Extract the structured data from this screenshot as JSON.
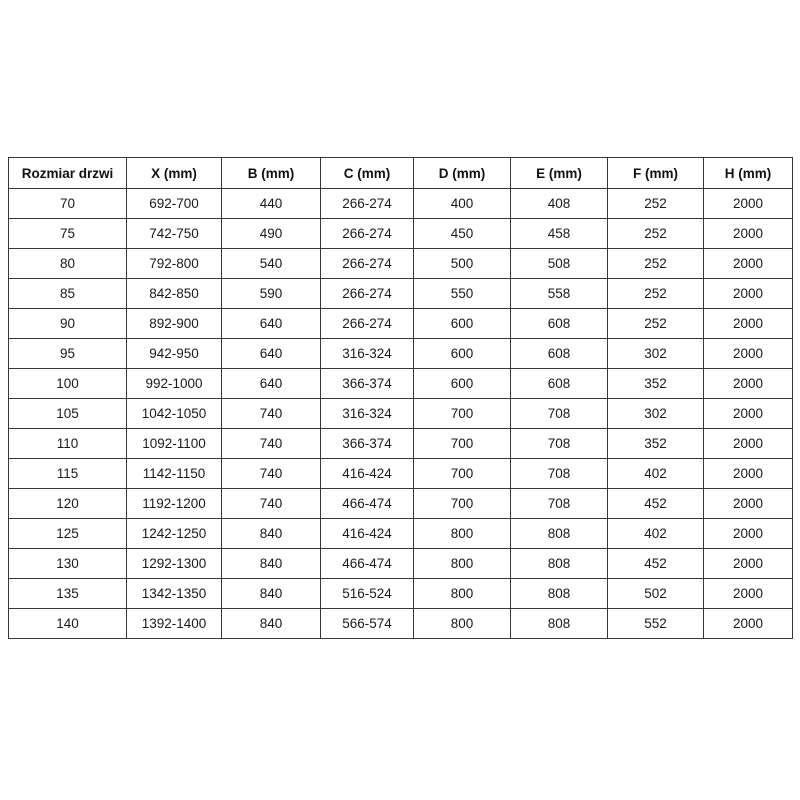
{
  "table": {
    "headers": [
      "Rozmiar drzwi",
      "X (mm)",
      "B (mm)",
      "C (mm)",
      "D (mm)",
      "E (mm)",
      "F (mm)",
      "H (mm)"
    ],
    "rows": [
      [
        "70",
        "692-700",
        "440",
        "266-274",
        "400",
        "408",
        "252",
        "2000"
      ],
      [
        "75",
        "742-750",
        "490",
        "266-274",
        "450",
        "458",
        "252",
        "2000"
      ],
      [
        "80",
        "792-800",
        "540",
        "266-274",
        "500",
        "508",
        "252",
        "2000"
      ],
      [
        "85",
        "842-850",
        "590",
        "266-274",
        "550",
        "558",
        "252",
        "2000"
      ],
      [
        "90",
        "892-900",
        "640",
        "266-274",
        "600",
        "608",
        "252",
        "2000"
      ],
      [
        "95",
        "942-950",
        "640",
        "316-324",
        "600",
        "608",
        "302",
        "2000"
      ],
      [
        "100",
        "992-1000",
        "640",
        "366-374",
        "600",
        "608",
        "352",
        "2000"
      ],
      [
        "105",
        "1042-1050",
        "740",
        "316-324",
        "700",
        "708",
        "302",
        "2000"
      ],
      [
        "110",
        "1092-1100",
        "740",
        "366-374",
        "700",
        "708",
        "352",
        "2000"
      ],
      [
        "115",
        "1142-1150",
        "740",
        "416-424",
        "700",
        "708",
        "402",
        "2000"
      ],
      [
        "120",
        "1192-1200",
        "740",
        "466-474",
        "700",
        "708",
        "452",
        "2000"
      ],
      [
        "125",
        "1242-1250",
        "840",
        "416-424",
        "800",
        "808",
        "402",
        "2000"
      ],
      [
        "130",
        "1292-1300",
        "840",
        "466-474",
        "800",
        "808",
        "452",
        "2000"
      ],
      [
        "135",
        "1342-1350",
        "840",
        "516-524",
        "800",
        "808",
        "502",
        "2000"
      ],
      [
        "140",
        "1392-1400",
        "840",
        "566-574",
        "800",
        "808",
        "552",
        "2000"
      ]
    ],
    "border_color": "#383838",
    "background_color": "#ffffff",
    "text_color": "#1a1a1a"
  }
}
